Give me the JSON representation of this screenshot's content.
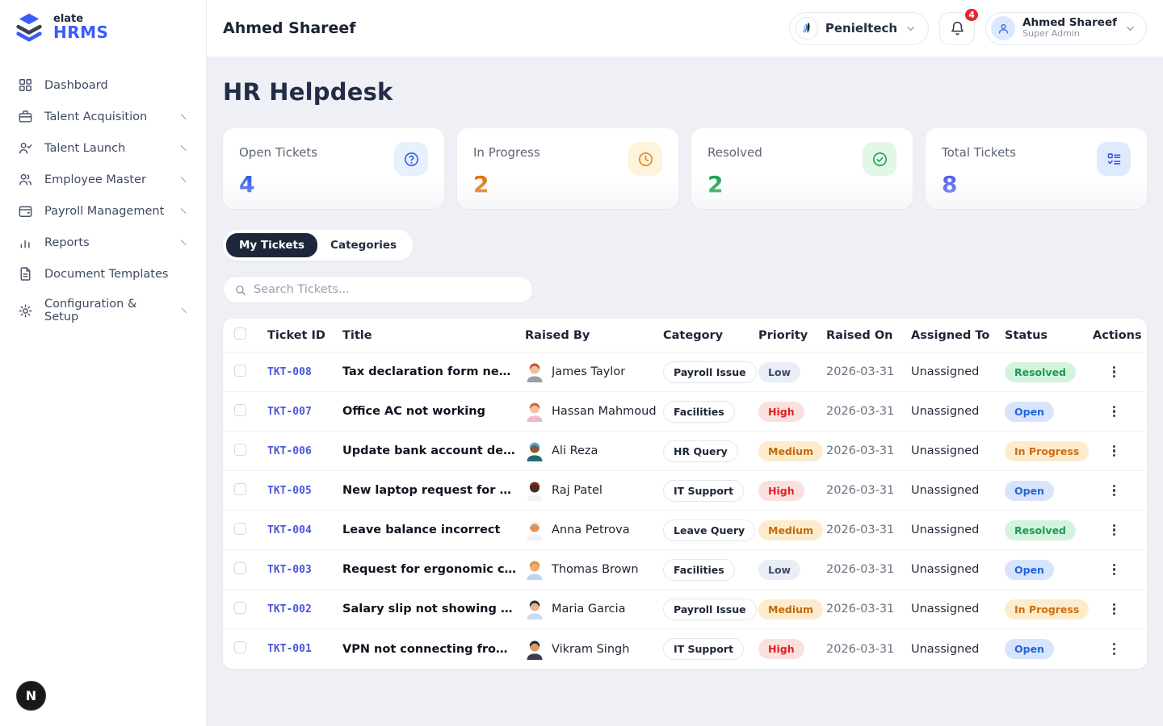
{
  "brand": {
    "name_top": "elate",
    "name_bottom": "HRMS",
    "accent": "#3b5bfd",
    "dark": "#3a4150"
  },
  "sidebar": {
    "items": [
      {
        "label": "Dashboard",
        "icon": "dashboard-icon",
        "has_chevron": false
      },
      {
        "label": "Talent Acquisition",
        "icon": "briefcase-icon",
        "has_chevron": true
      },
      {
        "label": "Talent Launch",
        "icon": "user-check-icon",
        "has_chevron": true
      },
      {
        "label": "Employee Master",
        "icon": "users-icon",
        "has_chevron": true
      },
      {
        "label": "Payroll Management",
        "icon": "wallet-icon",
        "has_chevron": true
      },
      {
        "label": "Reports",
        "icon": "bar-chart-icon",
        "has_chevron": true
      },
      {
        "label": "Document Templates",
        "icon": "file-text-icon",
        "has_chevron": false
      },
      {
        "label": "Configuration & Setup",
        "icon": "gear-icon",
        "has_chevron": true
      }
    ]
  },
  "topbar": {
    "title": "Ahmed Shareef",
    "company": {
      "name": "Penieltech"
    },
    "notification_count": "4",
    "user": {
      "name": "Ahmed Shareef",
      "role": "Super Admin"
    }
  },
  "page": {
    "title": "HR Helpdesk"
  },
  "stats": [
    {
      "label": "Open Tickets",
      "value": "4",
      "value_color": "#2b5ce5",
      "icon": "question-circle-icon",
      "icon_color": "#2b5ce5",
      "icon_bg": "#e7f0fd"
    },
    {
      "label": "In Progress",
      "value": "2",
      "value_color": "#dd7306",
      "icon": "clock-icon",
      "icon_color": "#e8820e",
      "icon_bg": "#fdf4dc"
    },
    {
      "label": "Resolved",
      "value": "2",
      "value_color": "#17a04b",
      "icon": "check-circle-icon",
      "icon_color": "#17a04b",
      "icon_bg": "#e2f6ea"
    },
    {
      "label": "Total Tickets",
      "value": "8",
      "value_color": "#4f5be8",
      "icon": "checklist-icon",
      "icon_color": "#3d52e4",
      "icon_bg": "#ddebfd"
    }
  ],
  "tabs": [
    {
      "label": "My Tickets",
      "active": true
    },
    {
      "label": "Categories",
      "active": false
    }
  ],
  "search": {
    "placeholder": "Search Tickets..."
  },
  "table": {
    "columns": [
      "Ticket ID",
      "Title",
      "Raised By",
      "Category",
      "Priority",
      "Raised On",
      "Assigned To",
      "Status",
      "Actions"
    ],
    "rows": [
      {
        "id": "TKT-008",
        "title": "Tax declaration form needed",
        "raised_by": "James Taylor",
        "avatar": {
          "hair": "#c05229",
          "skin": "#f2c19a",
          "shirt": "#9aa0aa"
        },
        "category": "Payroll Issue",
        "priority": "Low",
        "raised_on": "2026-03-31",
        "assigned_to": "Unassigned",
        "status": "Resolved"
      },
      {
        "id": "TKT-007",
        "title": "Office AC not working",
        "raised_by": "Hassan Mahmoud",
        "avatar": {
          "hair": "#d4602f",
          "skin": "#f4c4a4",
          "shirt": "#f2b8c6"
        },
        "category": "Facilities",
        "priority": "High",
        "raised_on": "2026-03-31",
        "assigned_to": "Unassigned",
        "status": "Open"
      },
      {
        "id": "TKT-006",
        "title": "Update bank account details",
        "raised_by": "Ali Reza",
        "avatar": {
          "hair": "#4fa8e8",
          "skin": "#8a5a34",
          "shirt": "#256a78"
        },
        "category": "HR Query",
        "priority": "Medium",
        "raised_on": "2026-03-31",
        "assigned_to": "Unassigned",
        "status": "In Progress"
      },
      {
        "id": "TKT-005",
        "title": "New laptop request for ne...",
        "raised_by": "Raj Patel",
        "avatar": {
          "hair": "#7c2d1e",
          "skin": "#4a2e22",
          "shirt": "#f2f3f5"
        },
        "category": "IT Support",
        "priority": "High",
        "raised_on": "2026-03-31",
        "assigned_to": "Unassigned",
        "status": "Open"
      },
      {
        "id": "TKT-004",
        "title": "Leave balance incorrect",
        "raised_by": "Anna Petrova",
        "avatar": {
          "hair": "#e9e9ee",
          "skin": "#e09050",
          "shirt": "#f1f1f4"
        },
        "category": "Leave Query",
        "priority": "Medium",
        "raised_on": "2026-03-31",
        "assigned_to": "Unassigned",
        "status": "Resolved"
      },
      {
        "id": "TKT-003",
        "title": "Request for ergonomic chair",
        "raised_by": "Thomas Brown",
        "avatar": {
          "hair": "#e0903a",
          "skin": "#e8b06a",
          "shirt": "#bcd8f0"
        },
        "category": "Facilities",
        "priority": "Low",
        "raised_on": "2026-03-31",
        "assigned_to": "Unassigned",
        "status": "Open"
      },
      {
        "id": "TKT-002",
        "title": "Salary slip not showing ove...",
        "raised_by": "Maria Garcia",
        "avatar": {
          "hair": "#2a2d34",
          "skin": "#e8b48a",
          "shirt": "#c6ddf2"
        },
        "category": "Payroll Issue",
        "priority": "Medium",
        "raised_on": "2026-03-31",
        "assigned_to": "Unassigned",
        "status": "In Progress"
      },
      {
        "id": "TKT-001",
        "title": "VPN not connecting from h...",
        "raised_by": "Vikram Singh",
        "avatar": {
          "hair": "#23262e",
          "skin": "#d89a6a",
          "shirt": "#3a3f4b"
        },
        "category": "IT Support",
        "priority": "High",
        "raised_on": "2026-03-31",
        "assigned_to": "Unassigned",
        "status": "Open"
      }
    ]
  },
  "colors": {
    "priority": {
      "Low": {
        "bg": "#e9edf5",
        "text": "#3c4b68"
      },
      "Medium": {
        "bg": "#fdeccb",
        "text": "#c2690b"
      },
      "High": {
        "bg": "#fbe0e0",
        "text": "#e02020"
      }
    },
    "status": {
      "Open": {
        "bg": "#d7e4fb",
        "text": "#2166dd"
      },
      "In Progress": {
        "bg": "#fdeccb",
        "text": "#cd6d12"
      },
      "Resolved": {
        "bg": "#d2f4de",
        "text": "#1a9b4e"
      }
    },
    "notification_badge": "#e8262d"
  },
  "floating_button": {
    "label": "N"
  }
}
